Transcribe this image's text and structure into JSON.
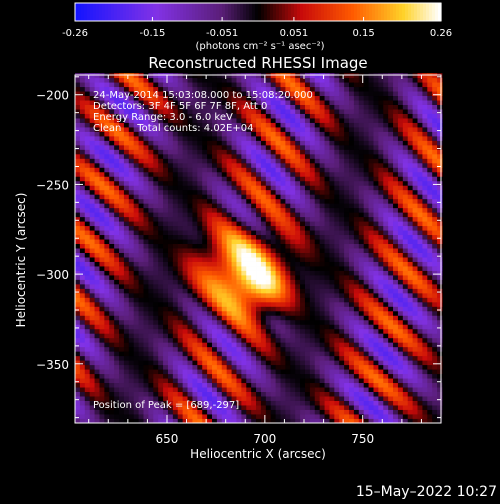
{
  "colorbar": {
    "tick_labels": [
      "-0.26",
      "-0.15",
      "-0.051",
      "0.051",
      "0.15",
      "0.26"
    ],
    "tick_values": [
      -0.26,
      -0.15,
      -0.051,
      0.051,
      0.15,
      0.26
    ],
    "units_label": "(photons cm⁻² s⁻¹ asec⁻²)",
    "range": [
      -0.26,
      0.26
    ]
  },
  "chart_data": {
    "type": "heatmap",
    "title": "Reconstructed RHESSI Image",
    "xlabel": "Heliocentric X (arcsec)",
    "ylabel": "Heliocentric Y (arcsec)",
    "xlim": [
      603,
      790
    ],
    "ylim": [
      -383,
      -189
    ],
    "x_ticks": [
      650,
      700,
      750
    ],
    "x_tick_labels": [
      "650",
      "700",
      "750"
    ],
    "y_ticks": [
      -200,
      -250,
      -300,
      -350
    ],
    "y_tick_labels": [
      "−200",
      "−250",
      "−300",
      "−350"
    ],
    "annotations": [
      "24-May-2014 15:03:08.000 to 15:08:20.000",
      "Detectors: 3F 4F 5F 6F 7F 8F, Att 0",
      "Energy Range: 3.0 - 6.0 keV",
      "Clean     Total counts: 4.02E+04"
    ],
    "peak_label": "Position of Peak = [689,-297]",
    "peak": {
      "x": 689,
      "y": -297,
      "value": 0.26
    },
    "colormap": "rainbow-fire (blue → purple → black → red → orange → yellow → white)",
    "pixel_size_arcsec": 2.5
  },
  "footer": {
    "timestamp": "15–May–2022 10:27"
  },
  "colors": {
    "background": "#000000",
    "text": "#ffffff"
  }
}
